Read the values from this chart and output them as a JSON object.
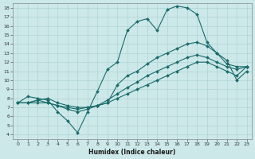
{
  "xlabel": "Humidex (Indice chaleur)",
  "bg_color": "#cce8e8",
  "line_color": "#1a6b6b",
  "grid_color": "#b0d4d4",
  "xlim": [
    -0.5,
    23.5
  ],
  "ylim": [
    3.5,
    18.5
  ],
  "xticks": [
    0,
    1,
    2,
    3,
    4,
    5,
    6,
    7,
    8,
    9,
    10,
    11,
    12,
    13,
    14,
    15,
    16,
    17,
    18,
    19,
    20,
    21,
    22,
    23
  ],
  "yticks": [
    4,
    5,
    6,
    7,
    8,
    9,
    10,
    11,
    12,
    13,
    14,
    15,
    16,
    17,
    18
  ],
  "line_zigzag_x": [
    0,
    1,
    2,
    3,
    4,
    5,
    6,
    7,
    8,
    9,
    10,
    11,
    12,
    13,
    14,
    15,
    16,
    17,
    18,
    19,
    20,
    21,
    22,
    23
  ],
  "line_zigzag_y": [
    7.5,
    8.2,
    8.0,
    7.8,
    6.5,
    5.5,
    4.2,
    6.5,
    8.8,
    11.2,
    12.0,
    15.5,
    16.5,
    16.8,
    15.5,
    17.8,
    18.2,
    18.0,
    17.3,
    14.2,
    13.0,
    12.2,
    10.0,
    11.0
  ],
  "line_upper_x": [
    0,
    1,
    2,
    3,
    4,
    5,
    6,
    7,
    8,
    9,
    10,
    11,
    12,
    13,
    14,
    15,
    16,
    17,
    18,
    19,
    20,
    21,
    22,
    23
  ],
  "line_upper_y": [
    7.5,
    7.5,
    7.8,
    8.0,
    7.5,
    7.2,
    7.0,
    7.0,
    7.2,
    7.5,
    9.5,
    10.5,
    11.0,
    11.8,
    12.5,
    13.0,
    13.5,
    14.0,
    14.2,
    13.8,
    13.0,
    11.8,
    11.5,
    11.5
  ],
  "line_mid_x": [
    0,
    1,
    2,
    3,
    4,
    5,
    6,
    7,
    8,
    9,
    10,
    11,
    12,
    13,
    14,
    15,
    16,
    17,
    18,
    19,
    20,
    21,
    22,
    23
  ],
  "line_mid_y": [
    7.5,
    7.5,
    7.8,
    7.5,
    7.2,
    6.8,
    6.5,
    6.8,
    7.2,
    7.8,
    8.5,
    9.2,
    9.8,
    10.5,
    11.0,
    11.5,
    12.0,
    12.5,
    12.8,
    12.5,
    12.0,
    11.5,
    11.2,
    11.5
  ],
  "line_low_x": [
    0,
    1,
    2,
    3,
    4,
    5,
    6,
    7,
    8,
    9,
    10,
    11,
    12,
    13,
    14,
    15,
    16,
    17,
    18,
    19,
    20,
    21,
    22,
    23
  ],
  "line_low_y": [
    7.5,
    7.5,
    7.5,
    7.5,
    7.2,
    7.0,
    6.8,
    7.0,
    7.2,
    7.5,
    8.0,
    8.5,
    9.0,
    9.5,
    10.0,
    10.5,
    11.0,
    11.5,
    12.0,
    12.0,
    11.5,
    11.0,
    10.5,
    11.5
  ]
}
